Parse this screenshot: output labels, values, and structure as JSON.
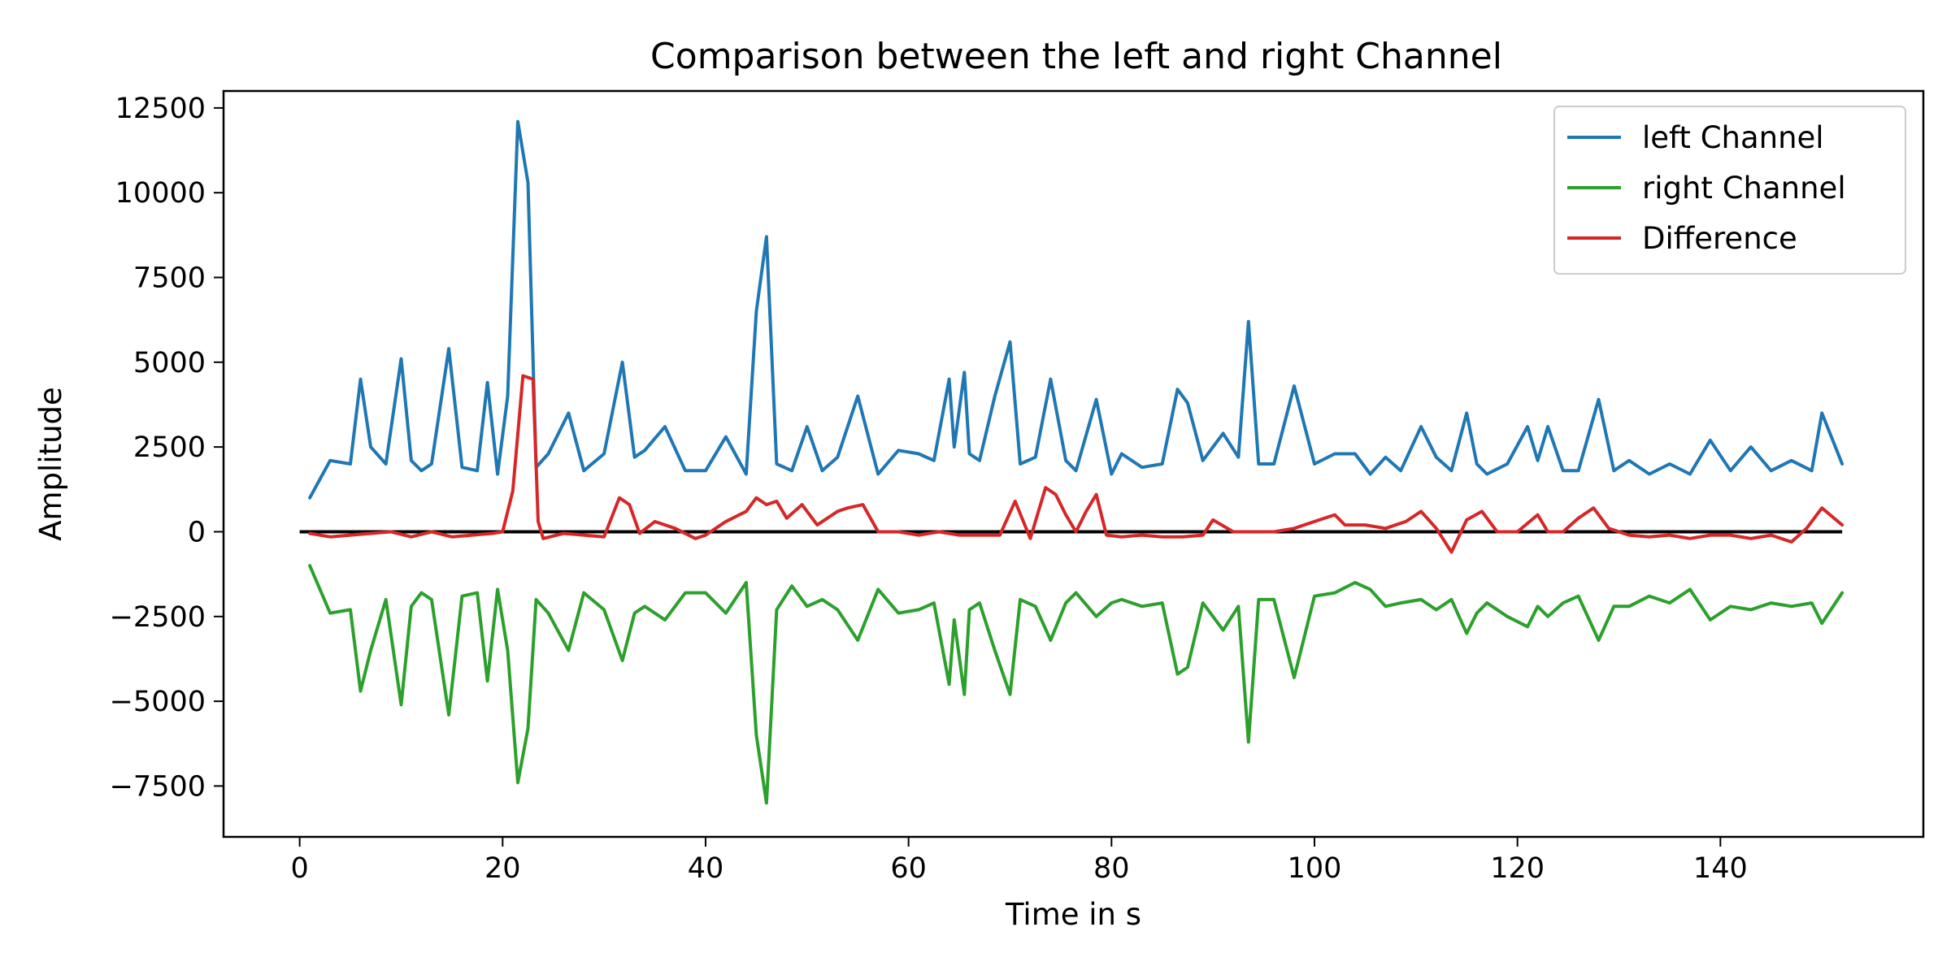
{
  "chart_data": {
    "type": "line",
    "title": "Comparison between the left and right Channel",
    "xlabel": "Time in s",
    "ylabel": "Amplitude",
    "xlim": [
      -7.5,
      160
    ],
    "ylim": [
      -9000,
      13000
    ],
    "xticks": [
      0,
      20,
      40,
      60,
      80,
      100,
      120,
      140
    ],
    "yticks": [
      -7500,
      -5000,
      -2500,
      0,
      2500,
      5000,
      7500,
      10000,
      12500
    ],
    "tick_labels": {
      "x": [
        "0",
        "20",
        "40",
        "60",
        "80",
        "100",
        "120",
        "140"
      ],
      "y": [
        "−7500",
        "−5000",
        "−2500",
        "0",
        "2500",
        "5000",
        "7500",
        "10000",
        "12500"
      ]
    },
    "grid": false,
    "legend": "top-right",
    "zero_line": {
      "y": 0,
      "x_range": [
        0,
        152
      ],
      "color": "#000000"
    },
    "series": [
      {
        "name": "left Channel",
        "color": "#1f77b4",
        "x": [
          1,
          3,
          5,
          6,
          7,
          8.5,
          10,
          11,
          12,
          13,
          14.7,
          16,
          17.5,
          18.5,
          19.5,
          20.5,
          21.5,
          22.5,
          23.3,
          24.5,
          26.5,
          28,
          30,
          31.8,
          33,
          34,
          36,
          38,
          40,
          42,
          44,
          45,
          46,
          47,
          48.5,
          50,
          51.5,
          53,
          55,
          57,
          59,
          61,
          62.5,
          64,
          64.5,
          65.5,
          66,
          67,
          68.5,
          70,
          71,
          72.5,
          74,
          75.5,
          76.5,
          78.5,
          80,
          81,
          83,
          85,
          86.5,
          87.5,
          89,
          91,
          92.5,
          93.5,
          94.5,
          96,
          98,
          100,
          102,
          104,
          105.5,
          107,
          108.5,
          110.5,
          112,
          113.5,
          115,
          116,
          117,
          119,
          121,
          122,
          123,
          124.5,
          126,
          128,
          129.5,
          131,
          133,
          135,
          137,
          139,
          141,
          143,
          145,
          147,
          149,
          150,
          152
        ],
        "y": [
          1000,
          2100,
          2000,
          4500,
          2500,
          2000,
          5100,
          2100,
          1800,
          2000,
          5400,
          1900,
          1800,
          4400,
          1700,
          4000,
          12100,
          10300,
          1900,
          2300,
          3500,
          1800,
          2300,
          5000,
          2200,
          2400,
          3100,
          1800,
          1800,
          2800,
          1700,
          6500,
          8700,
          2000,
          1800,
          3100,
          1800,
          2200,
          4000,
          1700,
          2400,
          2300,
          2100,
          4500,
          2500,
          4700,
          2300,
          2100,
          4000,
          5600,
          2000,
          2200,
          4500,
          2100,
          1800,
          3900,
          1700,
          2300,
          1900,
          2000,
          4200,
          3800,
          2100,
          2900,
          2200,
          6200,
          2000,
          2000,
          4300,
          2000,
          2300,
          2300,
          1700,
          2200,
          1800,
          3100,
          2200,
          1800,
          3500,
          2000,
          1700,
          2000,
          3100,
          2100,
          3100,
          1800,
          1800,
          3900,
          1800,
          2100,
          1700,
          2000,
          1700,
          2700,
          1800,
          2500,
          1800,
          2100,
          1800,
          3500,
          2000
        ],
        "line_width": 4
      },
      {
        "name": "right Channel",
        "color": "#2ca02c",
        "x": [
          1,
          3,
          5,
          6,
          7,
          8.5,
          10,
          11,
          12,
          13,
          14.7,
          16,
          17.5,
          18.5,
          19.5,
          20.5,
          21.5,
          22.5,
          23.3,
          24.5,
          26.5,
          28,
          30,
          31.8,
          33,
          34,
          36,
          38,
          40,
          42,
          44,
          45,
          46,
          47,
          48.5,
          50,
          51.5,
          53,
          55,
          57,
          59,
          61,
          62.5,
          64,
          64.5,
          65.5,
          66,
          67,
          68.5,
          70,
          71,
          72.5,
          74,
          75.5,
          76.5,
          78.5,
          80,
          81,
          83,
          85,
          86.5,
          87.5,
          89,
          91,
          92.5,
          93.5,
          94.5,
          96,
          98,
          100,
          102,
          104,
          105.5,
          107,
          108.5,
          110.5,
          112,
          113.5,
          115,
          116,
          117,
          119,
          121,
          122,
          123,
          124.5,
          126,
          128,
          129.5,
          131,
          133,
          135,
          137,
          139,
          141,
          143,
          145,
          147,
          149,
          150,
          152
        ],
        "y": [
          -1000,
          -2400,
          -2300,
          -4700,
          -3500,
          -2000,
          -5100,
          -2200,
          -1800,
          -2000,
          -5400,
          -1900,
          -1800,
          -4400,
          -1700,
          -3500,
          -7400,
          -5800,
          -2000,
          -2400,
          -3500,
          -1800,
          -2300,
          -3800,
          -2400,
          -2200,
          -2600,
          -1800,
          -1800,
          -2400,
          -1500,
          -6000,
          -8000,
          -2300,
          -1600,
          -2200,
          -2000,
          -2300,
          -3200,
          -1700,
          -2400,
          -2300,
          -2100,
          -4500,
          -2600,
          -4800,
          -2300,
          -2100,
          -3500,
          -4800,
          -2000,
          -2200,
          -3200,
          -2100,
          -1800,
          -2500,
          -2100,
          -2000,
          -2200,
          -2100,
          -4200,
          -4000,
          -2100,
          -2900,
          -2200,
          -6200,
          -2000,
          -2000,
          -4300,
          -1900,
          -1800,
          -1500,
          -1700,
          -2200,
          -2100,
          -2000,
          -2300,
          -2000,
          -3000,
          -2400,
          -2100,
          -2500,
          -2800,
          -2200,
          -2500,
          -2100,
          -1900,
          -3200,
          -2200,
          -2200,
          -1900,
          -2100,
          -1700,
          -2600,
          -2200,
          -2300,
          -2100,
          -2200,
          -2100,
          -2700,
          -1800
        ],
        "line_width": 4
      },
      {
        "name": "Difference",
        "color": "#d62728",
        "x": [
          1,
          3,
          5,
          7,
          9,
          11,
          13,
          15,
          17,
          19,
          20,
          21,
          22,
          23,
          23.5,
          24,
          26,
          28,
          30,
          31.5,
          32.5,
          33.5,
          35,
          37,
          39,
          40,
          42,
          44,
          45,
          46,
          47,
          48,
          49.5,
          51,
          53,
          54,
          55.5,
          57,
          59,
          61,
          63,
          65,
          67,
          69,
          70.5,
          72,
          73.5,
          74.5,
          75.5,
          76.5,
          77.5,
          78.5,
          79.5,
          81,
          83,
          85,
          87,
          89,
          90,
          92,
          94,
          96,
          98,
          100,
          102,
          103,
          105,
          107,
          109,
          110.5,
          112,
          113.5,
          115,
          116.5,
          118,
          120,
          122,
          123,
          124.5,
          126,
          127.5,
          129,
          131,
          133,
          135,
          137,
          139,
          141,
          143,
          145,
          147,
          148.5,
          150,
          152
        ],
        "y": [
          -50,
          -150,
          -100,
          -50,
          0,
          -150,
          0,
          -150,
          -100,
          -50,
          0,
          1200,
          4600,
          4500,
          300,
          -200,
          -50,
          -100,
          -150,
          1000,
          800,
          -50,
          300,
          100,
          -200,
          -100,
          300,
          600,
          1000,
          800,
          900,
          400,
          800,
          200,
          600,
          700,
          800,
          0,
          0,
          -100,
          0,
          -100,
          -100,
          -100,
          900,
          -200,
          1300,
          1100,
          500,
          0,
          600,
          1100,
          -100,
          -150,
          -100,
          -150,
          -150,
          -100,
          350,
          0,
          0,
          0,
          100,
          300,
          500,
          200,
          200,
          100,
          300,
          600,
          100,
          -600,
          350,
          600,
          0,
          0,
          500,
          0,
          0,
          400,
          700,
          100,
          -100,
          -150,
          -100,
          -200,
          -100,
          -100,
          -200,
          -100,
          -300,
          100,
          700,
          200
        ],
        "line_width": 4
      }
    ]
  }
}
